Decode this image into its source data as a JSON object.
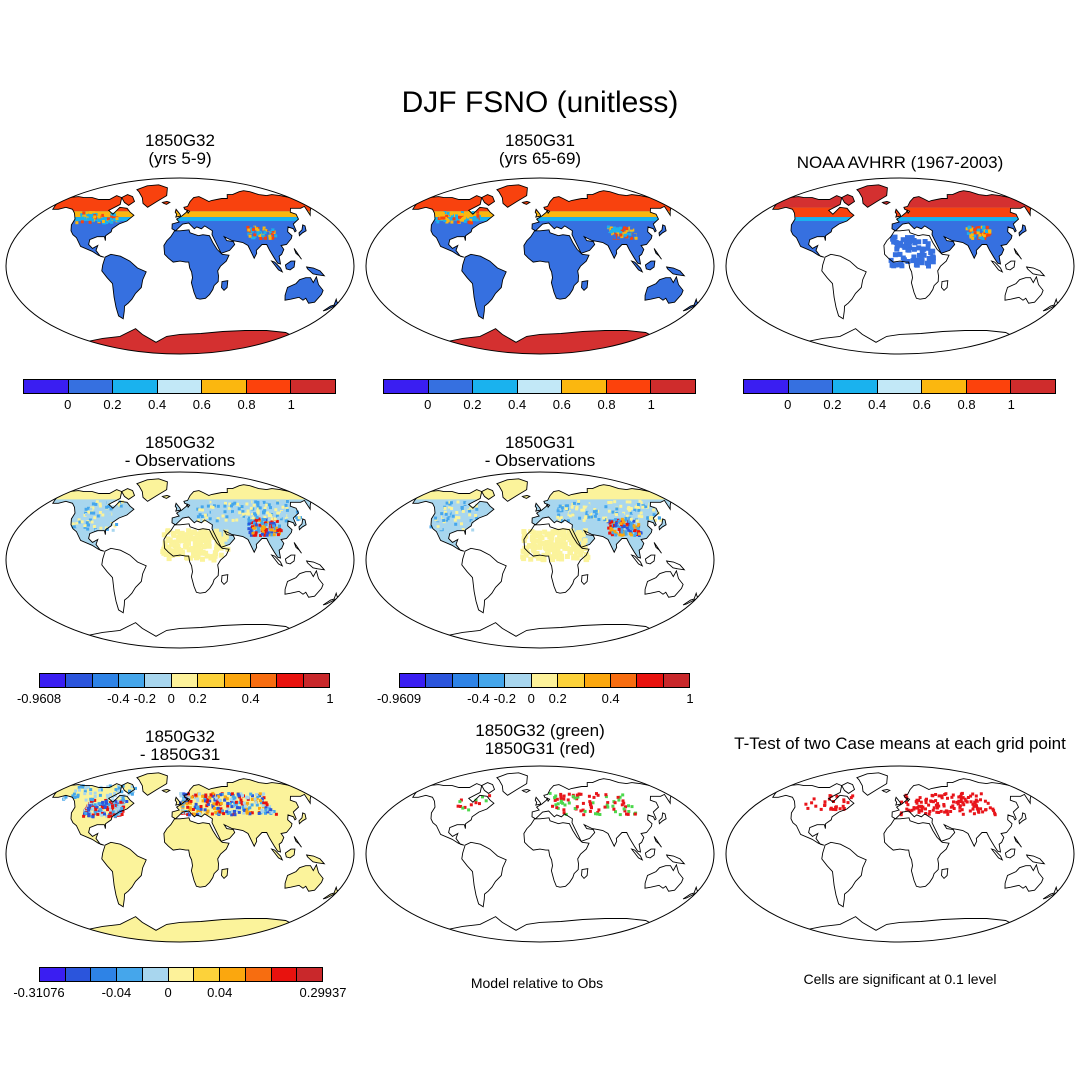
{
  "figure": {
    "title": "DJF FSNO (unitless)"
  },
  "panels": {
    "p1": {
      "line1": "1850G32",
      "line2": "(yrs 5-9)"
    },
    "p2": {
      "line1": "1850G31",
      "line2": "(yrs 65-69)"
    },
    "p3": {
      "line1": "NOAA AVHRR (1967-2003)"
    },
    "p4": {
      "line1": "1850G32",
      "line2": "- Observations"
    },
    "p5": {
      "line1": "1850G31",
      "line2": "- Observations"
    },
    "p7": {
      "line1": "1850G32",
      "line2": "- 1850G31"
    },
    "p8": {
      "line1": "1850G32 (green)",
      "line2": "1850G31 (red)"
    },
    "p9": {
      "line1": "T-Test of two Case means at each grid point"
    }
  },
  "notes": {
    "model_relative": "Model relative to Obs",
    "significance": "Cells are significant at 0.1 level"
  },
  "colorbars": {
    "abs": {
      "colors": [
        "#3a1ef2",
        "#3670e0",
        "#1ab2ee",
        "#c2e8f7",
        "#fbb70f",
        "#fc420c",
        "#cf2c2c"
      ],
      "labels": [
        "0",
        "0.2",
        "0.4",
        "0.6",
        "0.8",
        "1"
      ]
    },
    "diff1": {
      "colors": [
        "#3a1ef2",
        "#2b55dc",
        "#2e83e6",
        "#45a6eb",
        "#a8d6ee",
        "#fdf29a",
        "#fcd23a",
        "#fba70e",
        "#f76d10",
        "#e8120e",
        "#c9282b"
      ],
      "labels": [
        "-0.9608",
        "-0.4",
        "-0.2",
        "0",
        "0.2",
        "0.4",
        "1"
      ]
    },
    "diff2": {
      "colors": [
        "#3a1ef2",
        "#2b55dc",
        "#2e83e6",
        "#45a6eb",
        "#a8d6ee",
        "#fdf29a",
        "#fcd23a",
        "#fba70e",
        "#f76d10",
        "#e8120e",
        "#c9282b"
      ],
      "labels": [
        "-0.9609",
        "-0.4",
        "-0.2",
        "0",
        "0.2",
        "0.4",
        "1"
      ]
    },
    "diff3": {
      "colors": [
        "#3a1ef2",
        "#2b55dc",
        "#2e83e6",
        "#45a6eb",
        "#a8d6ee",
        "#fdf29a",
        "#fcd23a",
        "#fba70e",
        "#f76d10",
        "#e8120e",
        "#c9282b"
      ],
      "labels": [
        "-0.31076",
        "-0.04",
        "0",
        "0.04",
        "0.29937"
      ]
    }
  },
  "map_colors": {
    "snow_high": "#f8420e",
    "snow_mid": "#fbb70f",
    "snow_full": "#d43030",
    "snow_none": "#3670e0",
    "snow_light": "#1ab2ee",
    "diff_zero": "#fbf39b",
    "diff_neg": "#a8d6ee",
    "diff_neg2": "#45a6eb",
    "diff_neg3": "#2b55dc",
    "diff_pos": "#e8120e",
    "sig_red": "#e8141a",
    "sig_green": "#4cd84c"
  }
}
